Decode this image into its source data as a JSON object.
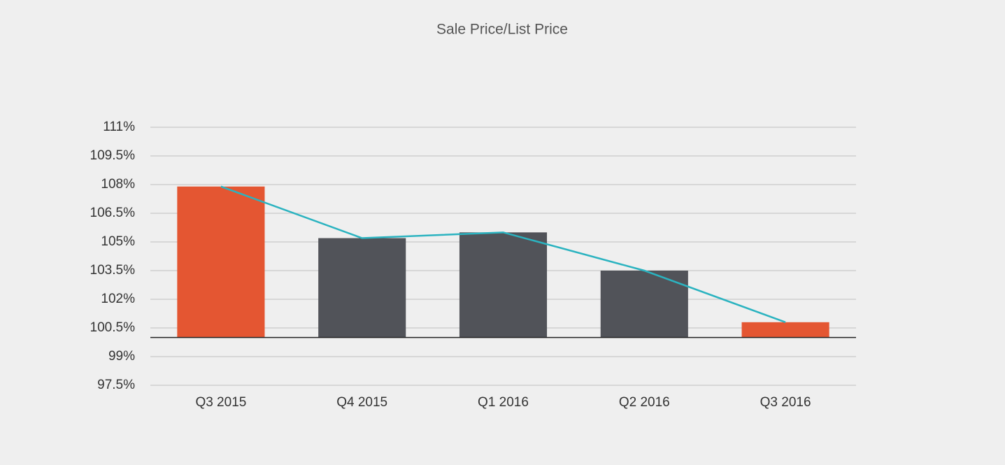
{
  "chart_data": {
    "type": "bar",
    "title": "Sale Price/List Price",
    "categories": [
      "Q3 2015",
      "Q4 2015",
      "Q1 2016",
      "Q2 2016",
      "Q3 2016"
    ],
    "series": [
      {
        "type": "bar",
        "colors": [
          "#e45632",
          "#515359",
          "#515359",
          "#515359",
          "#e45632"
        ],
        "values": [
          107.9,
          105.2,
          105.5,
          103.5,
          100.8
        ]
      },
      {
        "type": "line",
        "color": "#2bb3c0",
        "values": [
          107.9,
          105.2,
          105.5,
          103.5,
          100.8
        ]
      }
    ],
    "baseline": 100,
    "ylim": [
      97.5,
      111
    ],
    "yticks": [
      {
        "value": 97.5,
        "label": "97.5%"
      },
      {
        "value": 99,
        "label": "99%"
      },
      {
        "value": 100.5,
        "label": "100.5%"
      },
      {
        "value": 102,
        "label": "102%"
      },
      {
        "value": 103.5,
        "label": "103.5%"
      },
      {
        "value": 105,
        "label": "105%"
      },
      {
        "value": 106.5,
        "label": "106.5%"
      },
      {
        "value": 108,
        "label": "108%"
      },
      {
        "value": 109.5,
        "label": "109.5%"
      },
      {
        "value": 111,
        "label": "111%"
      }
    ],
    "grid": true
  }
}
